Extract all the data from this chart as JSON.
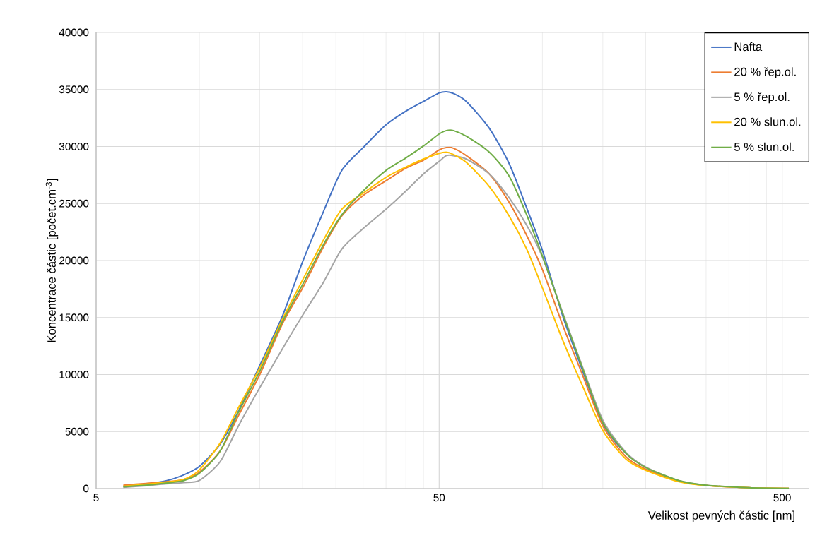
{
  "chart_data": {
    "type": "line",
    "xlabel": "Velikost pevných částic [nm]",
    "ylabel": "Koncentrace částic [počet.cm$^{-3}$]",
    "log": "x",
    "x": [
      6,
      7,
      8,
      9,
      10,
      11.5,
      13,
      15,
      17.5,
      20,
      23,
      26,
      30,
      35,
      40,
      45,
      50,
      52.5,
      55,
      60,
      70,
      80,
      90,
      100,
      115,
      130,
      150,
      175,
      200,
      250,
      300,
      400,
      523
    ],
    "series": [
      {
        "name": "Nafta",
        "color": "#4472c4",
        "values": [
          200,
          400,
          680,
          1200,
          1950,
          3900,
          6800,
          10800,
          15200,
          19900,
          24300,
          27900,
          29900,
          31900,
          33100,
          33950,
          34700,
          34800,
          34650,
          33950,
          31600,
          28500,
          24600,
          20900,
          15000,
          10600,
          5700,
          3100,
          1850,
          null,
          null,
          null,
          null
        ]
      },
      {
        "name": "20 % řep.ol.",
        "color": "#ed7d31",
        "values": [
          300,
          450,
          600,
          800,
          1440,
          3300,
          6400,
          10000,
          14500,
          17600,
          21200,
          23900,
          25700,
          27000,
          28100,
          28800,
          29700,
          29900,
          29850,
          29200,
          27600,
          25100,
          22200,
          19200,
          14200,
          10200,
          5500,
          2800,
          1700,
          650,
          280,
          70,
          10
        ]
      },
      {
        "name": "5 % řep.ol.",
        "color": "#a5a5a5",
        "values": [
          100,
          250,
          420,
          520,
          720,
          2370,
          5500,
          8850,
          12300,
          15200,
          18100,
          21000,
          22800,
          24500,
          26100,
          27600,
          28700,
          29200,
          29200,
          28900,
          27600,
          25500,
          23100,
          20300,
          15300,
          10900,
          6000,
          3200,
          1900,
          700,
          300,
          80,
          10
        ]
      },
      {
        "name": "20 % slun.ol.",
        "color": "#ffc000",
        "values": [
          200,
          380,
          560,
          800,
          1650,
          4000,
          7100,
          10600,
          14900,
          18300,
          21800,
          24500,
          25900,
          27300,
          28200,
          28900,
          29400,
          29500,
          29300,
          28600,
          26500,
          23900,
          21000,
          17600,
          12900,
          9200,
          5100,
          2600,
          1600,
          600,
          270,
          70,
          10
        ]
      },
      {
        "name": "5 % slun.ol.",
        "color": "#70ad47",
        "values": [
          150,
          300,
          480,
          700,
          1340,
          3300,
          6700,
          10300,
          14700,
          17900,
          21400,
          24000,
          26100,
          27900,
          29000,
          30050,
          31100,
          31400,
          31400,
          30900,
          29500,
          27400,
          24000,
          20400,
          15200,
          10800,
          5800,
          3100,
          1850,
          700,
          300,
          80,
          10
        ]
      }
    ],
    "xlim": [
      5,
      600
    ],
    "xticks": [
      5,
      {
        "value": 10,
        "label": null
      },
      {
        "value": 15,
        "label": null
      },
      {
        "value": 20,
        "label": null
      },
      {
        "value": 25,
        "label": null
      },
      {
        "value": 30,
        "label": null
      },
      {
        "value": 35,
        "label": null
      },
      {
        "value": 40,
        "label": null
      },
      {
        "value": 45,
        "label": null
      },
      50,
      {
        "value": 100,
        "label": null
      },
      {
        "value": 150,
        "label": null
      },
      {
        "value": 200,
        "label": null
      },
      {
        "value": 250,
        "label": null
      },
      {
        "value": 300,
        "label": null
      },
      {
        "value": 350,
        "label": null
      },
      {
        "value": 400,
        "label": null
      },
      {
        "value": 450,
        "label": null
      },
      500
    ],
    "ylim": [
      0,
      40000
    ],
    "yticks": [
      0,
      5000,
      10000,
      15000,
      20000,
      25000,
      30000,
      35000,
      40000
    ],
    "grid": true,
    "legend": "top right"
  }
}
